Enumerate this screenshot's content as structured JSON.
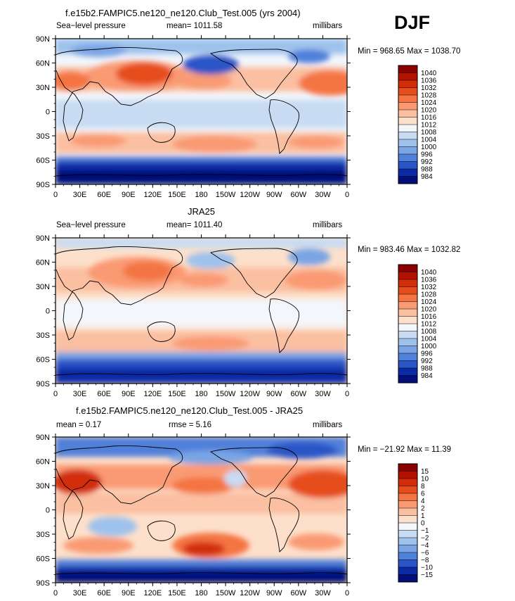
{
  "season": "DJF",
  "panels": [
    {
      "title": "f.e15b2.FAMPIC5.ne120_ne120.Club_Test.005 (yrs 2004)",
      "left_label": "Sea−level pressure",
      "center_label": "mean=  1011.58",
      "units": "millibars",
      "minmax": "Min = 968.65 Max = 1038.70",
      "colorbar_labels": [
        "1040",
        "1036",
        "1032",
        "1028",
        "1024",
        "1020",
        "1016",
        "1012",
        "1008",
        "1004",
        "1000",
        "996",
        "992",
        "988",
        "984"
      ],
      "colorbar_colors": [
        "#8b0000",
        "#b31200",
        "#d22d08",
        "#e64d1c",
        "#f47443",
        "#f99a73",
        "#fbbfa1",
        "#fde0cb",
        "#f3f6fb",
        "#c7dbf3",
        "#9fc2ec",
        "#7aa4e4",
        "#4f80da",
        "#2a55c7",
        "#0b2aa6",
        "#030e78"
      ]
    },
    {
      "title": "JRA25",
      "left_label": "Sea−level pressure",
      "center_label": "mean=  1011.40",
      "units": "millibars",
      "minmax": "Min = 983.46 Max = 1032.82",
      "colorbar_labels": [
        "1040",
        "1036",
        "1032",
        "1028",
        "1024",
        "1020",
        "1016",
        "1012",
        "1008",
        "1004",
        "1000",
        "996",
        "992",
        "988",
        "984"
      ],
      "colorbar_colors": [
        "#8b0000",
        "#b31200",
        "#d22d08",
        "#e64d1c",
        "#f47443",
        "#f99a73",
        "#fbbfa1",
        "#fde0cb",
        "#f3f6fb",
        "#c7dbf3",
        "#9fc2ec",
        "#7aa4e4",
        "#4f80da",
        "#2a55c7",
        "#0b2aa6",
        "#030e78"
      ]
    },
    {
      "title": "f.e15b2.FAMPIC5.ne120_ne120.Club_Test.005 - JRA25",
      "left_label": "mean =    0.17",
      "center_label": "rmse =    5.16",
      "units": "millibars",
      "minmax": "Min = −21.92 Max =  11.39",
      "colorbar_labels": [
        "15",
        "10",
        "8",
        "6",
        "4",
        "2",
        "1",
        "0",
        "−1",
        "−2",
        "−4",
        "−6",
        "−8",
        "−10",
        "−15"
      ],
      "colorbar_colors": [
        "#8b0000",
        "#b31200",
        "#d22d08",
        "#e64d1c",
        "#f47443",
        "#f99a73",
        "#fbbfa1",
        "#fde0cb",
        "#f3f6fb",
        "#c7dbf3",
        "#9fc2ec",
        "#7aa4e4",
        "#4f80da",
        "#2a55c7",
        "#0b2aa6",
        "#030e78"
      ]
    }
  ],
  "lat_labels": [
    "90N",
    "60N",
    "30N",
    "0",
    "30S",
    "60S",
    "90S"
  ],
  "lon_labels": [
    "0",
    "30E",
    "60E",
    "90E",
    "120E",
    "150E",
    "180",
    "150W",
    "120W",
    "90W",
    "60W",
    "30W",
    "0"
  ],
  "chart_data": [
    {
      "type": "heatmap",
      "title": "f.e15b2.FAMPIC5.ne120_ne120.Club_Test.005 (yrs 2004)",
      "variable": "Sea-level pressure",
      "units": "millibars",
      "mean": 1011.58,
      "min": 968.65,
      "max": 1038.7,
      "contour_levels": [
        984,
        988,
        992,
        996,
        1000,
        1004,
        1008,
        1012,
        1016,
        1020,
        1024,
        1028,
        1032,
        1036,
        1040
      ],
      "lat_ticks": [
        90,
        60,
        30,
        0,
        -30,
        -60,
        -90
      ],
      "lon_ticks": [
        0,
        30,
        60,
        90,
        120,
        150,
        180,
        210,
        240,
        270,
        300,
        330,
        360
      ],
      "lat": [
        75,
        45,
        15,
        -15,
        -45,
        -75
      ],
      "lon": [
        15,
        45,
        75,
        105,
        135,
        165,
        195,
        225,
        255,
        285,
        315,
        345
      ],
      "values": [
        [
          1008,
          1008,
          1012,
          1016,
          1012,
          1004,
          996,
          1000,
          1008,
          1016,
          1008,
          1004
        ],
        [
          1016,
          1020,
          1028,
          1034,
          1026,
          1016,
          1012,
          1020,
          1024,
          1024,
          1026,
          1030
        ],
        [
          1012,
          1012,
          1010,
          1010,
          1010,
          1012,
          1012,
          1014,
          1014,
          1012,
          1014,
          1016
        ],
        [
          1014,
          1012,
          1010,
          1010,
          1008,
          1010,
          1012,
          1014,
          1014,
          1012,
          1012,
          1016
        ],
        [
          1018,
          1022,
          1022,
          1020,
          1018,
          1022,
          1024,
          1024,
          1020,
          1018,
          1020,
          1020
        ],
        [
          988,
          986,
          986,
          988,
          988,
          986,
          986,
          986,
          986,
          988,
          988,
          988
        ]
      ]
    },
    {
      "type": "heatmap",
      "title": "JRA25",
      "variable": "Sea-level pressure",
      "units": "millibars",
      "mean": 1011.4,
      "min": 983.46,
      "max": 1032.82,
      "contour_levels": [
        984,
        988,
        992,
        996,
        1000,
        1004,
        1008,
        1012,
        1016,
        1020,
        1024,
        1028,
        1032,
        1036,
        1040
      ],
      "lat_ticks": [
        90,
        60,
        30,
        0,
        -30,
        -60,
        -90
      ],
      "lon_ticks": [
        0,
        30,
        60,
        90,
        120,
        150,
        180,
        210,
        240,
        270,
        300,
        330,
        360
      ],
      "lat": [
        75,
        45,
        15,
        -15,
        -45,
        -75
      ],
      "lon": [
        15,
        45,
        75,
        105,
        135,
        165,
        195,
        225,
        255,
        285,
        315,
        345
      ],
      "values": [
        [
          1012,
          1016,
          1018,
          1020,
          1016,
          1008,
          1004,
          1008,
          1016,
          1012,
          1004,
          1008
        ],
        [
          1016,
          1020,
          1024,
          1028,
          1020,
          1012,
          1008,
          1016,
          1020,
          1020,
          1016,
          1016
        ],
        [
          1012,
          1012,
          1010,
          1010,
          1010,
          1012,
          1012,
          1014,
          1014,
          1012,
          1014,
          1016
        ],
        [
          1014,
          1012,
          1010,
          1010,
          1008,
          1010,
          1012,
          1014,
          1014,
          1012,
          1012,
          1016
        ],
        [
          1016,
          1016,
          1016,
          1016,
          1014,
          1016,
          1016,
          1016,
          1016,
          1016,
          1016,
          1016
        ],
        [
          992,
          988,
          988,
          992,
          992,
          988,
          988,
          988,
          988,
          992,
          992,
          988
        ]
      ]
    },
    {
      "type": "heatmap",
      "title": "f.e15b2.FAMPIC5.ne120_ne120.Club_Test.005 - JRA25",
      "variable": "Sea-level pressure difference",
      "units": "millibars",
      "mean": 0.17,
      "rmse": 5.16,
      "min": -21.92,
      "max": 11.39,
      "contour_levels": [
        -15,
        -10,
        -8,
        -6,
        -4,
        -2,
        -1,
        0,
        1,
        2,
        4,
        6,
        8,
        10,
        15
      ],
      "lat_ticks": [
        90,
        60,
        30,
        0,
        -30,
        -60,
        -90
      ],
      "lon_ticks": [
        0,
        30,
        60,
        90,
        120,
        150,
        180,
        210,
        240,
        270,
        300,
        330,
        360
      ],
      "lat": [
        75,
        45,
        15,
        -15,
        -45,
        -75
      ],
      "lon": [
        15,
        45,
        75,
        105,
        135,
        165,
        195,
        225,
        255,
        285,
        315,
        345
      ],
      "values": [
        [
          -6,
          -8,
          -6,
          -4,
          -4,
          -4,
          -8,
          -8,
          -8,
          4,
          4,
          -4
        ],
        [
          6,
          2,
          4,
          6,
          6,
          4,
          4,
          4,
          4,
          4,
          8,
          10
        ],
        [
          2,
          1,
          0,
          0,
          0,
          0,
          0,
          0,
          0,
          0,
          1,
          2
        ],
        [
          2,
          -1,
          -4,
          -2,
          0,
          0,
          1,
          1,
          0,
          0,
          0,
          2
        ],
        [
          4,
          6,
          6,
          4,
          4,
          6,
          8,
          8,
          4,
          2,
          4,
          4
        ],
        [
          -4,
          -2,
          -2,
          -4,
          -4,
          -2,
          -2,
          -2,
          -2,
          -4,
          -4,
          -2
        ]
      ]
    }
  ]
}
